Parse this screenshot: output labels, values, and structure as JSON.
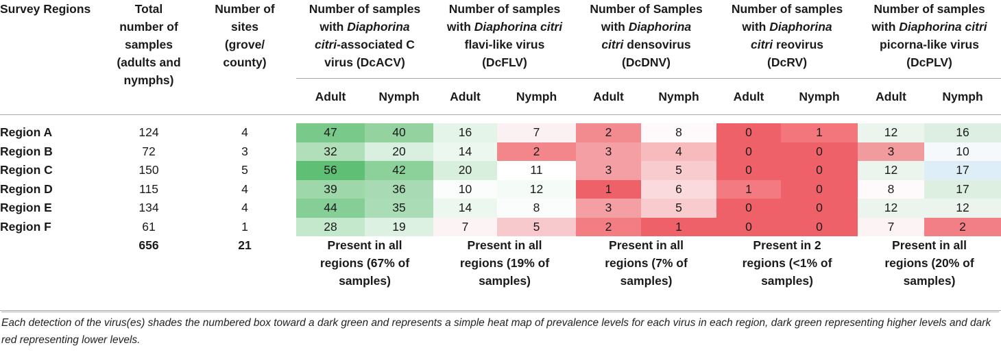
{
  "header": {
    "region_col": "Survey Regions",
    "total_samples": [
      "Total",
      "number of",
      "samples",
      "(adults and",
      "nymphs)"
    ],
    "sites": [
      "Number of",
      "sites",
      "(grove/",
      "county)"
    ]
  },
  "viruses": [
    {
      "key": "dcacv",
      "lines": [
        {
          "pre": "Number of samples",
          "it": "",
          "post": ""
        },
        {
          "pre": "with ",
          "it": "Diaphorina",
          "post": ""
        },
        {
          "pre": "",
          "it": "citri",
          "post": "-associated C"
        },
        {
          "pre": "virus (DcACV)",
          "it": "",
          "post": ""
        }
      ]
    },
    {
      "key": "dcflv",
      "lines": [
        {
          "pre": "Number of samples",
          "it": "",
          "post": ""
        },
        {
          "pre": "with ",
          "it": "Diaphorina citri",
          "post": ""
        },
        {
          "pre": "flavi-like virus",
          "it": "",
          "post": ""
        },
        {
          "pre": "(DcFLV)",
          "it": "",
          "post": ""
        }
      ]
    },
    {
      "key": "dcdnv",
      "lines": [
        {
          "pre": "Number of Samples",
          "it": "",
          "post": ""
        },
        {
          "pre": "with ",
          "it": "Diaphorina",
          "post": ""
        },
        {
          "pre": "",
          "it": "citri",
          "post": " densovirus"
        },
        {
          "pre": "(DcDNV)",
          "it": "",
          "post": ""
        }
      ]
    },
    {
      "key": "dcrv",
      "lines": [
        {
          "pre": "Number of samples",
          "it": "",
          "post": ""
        },
        {
          "pre": "with ",
          "it": "Diaphorina",
          "post": ""
        },
        {
          "pre": "",
          "it": "citri",
          "post": " reovirus"
        },
        {
          "pre": "(DcRV)",
          "it": "",
          "post": ""
        }
      ]
    },
    {
      "key": "dcplv",
      "lines": [
        {
          "pre": "Number of samples",
          "it": "",
          "post": ""
        },
        {
          "pre": "with ",
          "it": "Diaphorina citri",
          "post": ""
        },
        {
          "pre": "picorna-like virus",
          "it": "",
          "post": ""
        },
        {
          "pre": "(DcPLV)",
          "it": "",
          "post": ""
        }
      ]
    }
  ],
  "subheaders": {
    "adult": "Adult",
    "nymph": "Nymph"
  },
  "rows": [
    {
      "region": "Region A",
      "total": "124",
      "sites": "4",
      "values": [
        "47",
        "40",
        "16",
        "7",
        "2",
        "8",
        "0",
        "1",
        "12",
        "16"
      ],
      "colors": [
        "#78c98a",
        "#94d3a0",
        "#e4f4e8",
        "#fbf1f2",
        "#f28b8f",
        "#fef9fa",
        "#ef6169",
        "#f2767c",
        "#ebf5ee",
        "#ddefe2"
      ]
    },
    {
      "region": "Region B",
      "total": "72",
      "sites": "3",
      "values": [
        "32",
        "20",
        "14",
        "2",
        "3",
        "4",
        "0",
        "0",
        "3",
        "10"
      ],
      "colors": [
        "#b0dfb9",
        "#d9efdf",
        "#ecf7ef",
        "#f3868a",
        "#f39fa3",
        "#f7babd",
        "#ef6169",
        "#ef6169",
        "#f29b9f",
        "#f5f9fb"
      ]
    },
    {
      "region": "Region C",
      "total": "150",
      "sites": "5",
      "values": [
        "56",
        "42",
        "20",
        "11",
        "3",
        "5",
        "0",
        "0",
        "12",
        "17"
      ],
      "colors": [
        "#5fbf75",
        "#8dd19a",
        "#d9efde",
        "#ffffff",
        "#f39fa3",
        "#f8cbce",
        "#ef6169",
        "#ef6169",
        "#ebf5ee",
        "#ddeef7"
      ]
    },
    {
      "region": "Region D",
      "total": "115",
      "sites": "4",
      "values": [
        "39",
        "36",
        "10",
        "12",
        "1",
        "6",
        "1",
        "0",
        "8",
        "17"
      ],
      "colors": [
        "#9ed7aa",
        "#a8dbb3",
        "#fafdfb",
        "#f5fbf7",
        "#ef6169",
        "#fadadc",
        "#f27a80",
        "#ef6169",
        "#fef9fa",
        "#dcefe1"
      ]
    },
    {
      "region": "Region E",
      "total": "134",
      "sites": "4",
      "values": [
        "44",
        "35",
        "14",
        "8",
        "3",
        "5",
        "0",
        "0",
        "12",
        "12"
      ],
      "colors": [
        "#85ce95",
        "#aadcb5",
        "#ecf7ef",
        "#fbfcfc",
        "#f39fa3",
        "#f8cbce",
        "#ef6169",
        "#ef6169",
        "#ebf5ee",
        "#ebf5ee"
      ]
    },
    {
      "region": "Region F",
      "total": "61",
      "sites": "1",
      "values": [
        "28",
        "19",
        "7",
        "5",
        "2",
        "1",
        "0",
        "0",
        "7",
        "2"
      ],
      "colors": [
        "#c4e8cb",
        "#dcf1e1",
        "#fbf3f4",
        "#f8c9cc",
        "#f27e84",
        "#ef6169",
        "#ef6169",
        "#ef6169",
        "#fbf3f4",
        "#f27f85"
      ]
    }
  ],
  "totals": {
    "total": "656",
    "sites": "21",
    "summaries": [
      [
        "Present in all",
        "regions (67% of",
        "samples)"
      ],
      [
        "Present in all",
        "regions (19% of",
        "samples)"
      ],
      [
        "Present in all",
        "regions (7% of",
        "samples)"
      ],
      [
        "Present in 2",
        "regions (<1% of",
        "samples)"
      ],
      [
        "Present in all",
        "regions (20% of",
        "samples)"
      ]
    ]
  },
  "footnote": "Each detection of the virus(es) shades the numbered box toward a dark green and represents a simple heat map of prevalence levels for each virus in each region, dark green representing higher levels and dark red representing lower levels."
}
